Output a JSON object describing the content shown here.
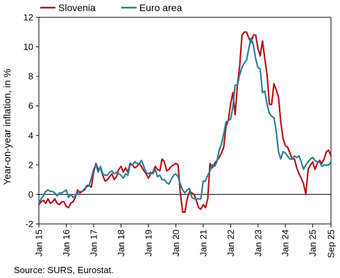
{
  "chart_data": {
    "type": "line",
    "title": "",
    "ylabel": "Year-on-year inflation, in %",
    "xlabel": "",
    "ylim": [
      -2,
      12
    ],
    "y_ticks": [
      -2,
      0,
      2,
      4,
      6,
      8,
      10,
      12
    ],
    "x_tick_labels": [
      "Jan 15",
      "Jan 16",
      "Jan 17",
      "Jan 18",
      "Jan 19",
      "Jan 20",
      "Jan 21",
      "Jan 22",
      "Jan 23",
      "Jan 24",
      "Jan 25",
      "Sep 25"
    ],
    "x_range": [
      "2015-01",
      "2025-09"
    ],
    "grid": false,
    "zero_line": true,
    "legend_position": "top-left",
    "source_note": "Source: SURS, Eurostat.",
    "series": [
      {
        "name": "Slovenia",
        "color": "#b5121b",
        "points": [
          [
            "2015-01",
            -0.7
          ],
          [
            "2015-02",
            -0.5
          ],
          [
            "2015-03",
            -0.4
          ],
          [
            "2015-04",
            -0.6
          ],
          [
            "2015-05",
            -0.3
          ],
          [
            "2015-06",
            -0.6
          ],
          [
            "2015-07",
            -0.5
          ],
          [
            "2015-08",
            -0.3
          ],
          [
            "2015-09",
            -0.6
          ],
          [
            "2015-10",
            -0.7
          ],
          [
            "2015-11",
            -0.5
          ],
          [
            "2015-12",
            -0.5
          ],
          [
            "2016-01",
            -0.8
          ],
          [
            "2016-02",
            -0.9
          ],
          [
            "2016-03",
            -0.6
          ],
          [
            "2016-04",
            -0.5
          ],
          [
            "2016-05",
            -0.2
          ],
          [
            "2016-06",
            0.3
          ],
          [
            "2016-07",
            0.1
          ],
          [
            "2016-08",
            0.2
          ],
          [
            "2016-09",
            0.3
          ],
          [
            "2016-10",
            0.6
          ],
          [
            "2016-11",
            0.6
          ],
          [
            "2016-12",
            0.5
          ],
          [
            "2017-01",
            1.5
          ],
          [
            "2017-02",
            2.1
          ],
          [
            "2017-03",
            1.7
          ],
          [
            "2017-04",
            1.8
          ],
          [
            "2017-05",
            1.3
          ],
          [
            "2017-06",
            0.9
          ],
          [
            "2017-07",
            1.0
          ],
          [
            "2017-08",
            1.2
          ],
          [
            "2017-09",
            1.4
          ],
          [
            "2017-10",
            1.0
          ],
          [
            "2017-11",
            1.2
          ],
          [
            "2017-12",
            1.7
          ],
          [
            "2018-01",
            1.9
          ],
          [
            "2018-02",
            1.5
          ],
          [
            "2018-03",
            1.8
          ],
          [
            "2018-04",
            1.5
          ],
          [
            "2018-05",
            2.1
          ],
          [
            "2018-06",
            2.0
          ],
          [
            "2018-07",
            1.8
          ],
          [
            "2018-08",
            1.9
          ],
          [
            "2018-09",
            2.1
          ],
          [
            "2018-10",
            1.9
          ],
          [
            "2018-11",
            1.6
          ],
          [
            "2018-12",
            1.4
          ],
          [
            "2019-01",
            1.1
          ],
          [
            "2019-02",
            1.4
          ],
          [
            "2019-03",
            1.5
          ],
          [
            "2019-04",
            1.9
          ],
          [
            "2019-05",
            1.7
          ],
          [
            "2019-06",
            1.6
          ],
          [
            "2019-07",
            2.4
          ],
          [
            "2019-08",
            2.2
          ],
          [
            "2019-09",
            1.6
          ],
          [
            "2019-10",
            1.7
          ],
          [
            "2019-11",
            1.9
          ],
          [
            "2019-12",
            2.0
          ],
          [
            "2020-01",
            2.1
          ],
          [
            "2020-02",
            2.0
          ],
          [
            "2020-03",
            0.1
          ],
          [
            "2020-04",
            -1.2
          ],
          [
            "2020-05",
            -1.2
          ],
          [
            "2020-06",
            -0.3
          ],
          [
            "2020-07",
            0.2
          ],
          [
            "2020-08",
            0.1
          ],
          [
            "2020-09",
            0.0
          ],
          [
            "2020-10",
            -0.4
          ],
          [
            "2020-11",
            -0.9
          ],
          [
            "2020-12",
            -1.0
          ],
          [
            "2021-01",
            -0.7
          ],
          [
            "2021-02",
            -0.9
          ],
          [
            "2021-03",
            -0.3
          ],
          [
            "2021-04",
            2.1
          ],
          [
            "2021-05",
            1.8
          ],
          [
            "2021-06",
            2.1
          ],
          [
            "2021-07",
            2.3
          ],
          [
            "2021-08",
            2.5
          ],
          [
            "2021-09",
            2.8
          ],
          [
            "2021-10",
            3.2
          ],
          [
            "2021-11",
            4.6
          ],
          [
            "2021-12",
            5.0
          ],
          [
            "2022-01",
            6.1
          ],
          [
            "2022-02",
            6.9
          ],
          [
            "2022-03",
            5.4
          ],
          [
            "2022-04",
            7.4
          ],
          [
            "2022-05",
            8.7
          ],
          [
            "2022-06",
            10.8
          ],
          [
            "2022-07",
            11.0
          ],
          [
            "2022-08",
            11.0
          ],
          [
            "2022-09",
            10.6
          ],
          [
            "2022-10",
            10.3
          ],
          [
            "2022-11",
            10.8
          ],
          [
            "2022-12",
            10.8
          ],
          [
            "2023-01",
            9.9
          ],
          [
            "2023-02",
            9.4
          ],
          [
            "2023-03",
            10.4
          ],
          [
            "2023-04",
            9.2
          ],
          [
            "2023-05",
            8.1
          ],
          [
            "2023-06",
            6.1
          ],
          [
            "2023-07",
            6.1
          ],
          [
            "2023-08",
            7.5
          ],
          [
            "2023-09",
            7.1
          ],
          [
            "2023-10",
            6.6
          ],
          [
            "2023-11",
            4.9
          ],
          [
            "2023-12",
            3.8
          ],
          [
            "2024-01",
            3.3
          ],
          [
            "2024-02",
            3.2
          ],
          [
            "2024-03",
            2.8
          ],
          [
            "2024-04",
            2.4
          ],
          [
            "2024-05",
            2.4
          ],
          [
            "2024-06",
            1.8
          ],
          [
            "2024-07",
            1.4
          ],
          [
            "2024-08",
            1.1
          ],
          [
            "2024-09",
            0.7
          ],
          [
            "2024-10",
            0.0
          ],
          [
            "2024-11",
            1.7
          ],
          [
            "2024-12",
            2.0
          ],
          [
            "2025-01",
            2.2
          ],
          [
            "2025-02",
            1.7
          ],
          [
            "2025-03",
            2.1
          ],
          [
            "2025-04",
            2.3
          ],
          [
            "2025-05",
            2.1
          ],
          [
            "2025-06",
            2.4
          ],
          [
            "2025-07",
            2.9
          ],
          [
            "2025-08",
            3.0
          ],
          [
            "2025-09",
            2.6
          ]
        ]
      },
      {
        "name": "Euro area",
        "color": "#2b7f96",
        "points": [
          [
            "2015-01",
            -0.6
          ],
          [
            "2015-02",
            -0.3
          ],
          [
            "2015-03",
            -0.1
          ],
          [
            "2015-04",
            0.2
          ],
          [
            "2015-05",
            0.3
          ],
          [
            "2015-06",
            0.2
          ],
          [
            "2015-07",
            0.2
          ],
          [
            "2015-08",
            0.1
          ],
          [
            "2015-09",
            -0.1
          ],
          [
            "2015-10",
            0.1
          ],
          [
            "2015-11",
            0.1
          ],
          [
            "2015-12",
            0.2
          ],
          [
            "2016-01",
            0.3
          ],
          [
            "2016-02",
            -0.2
          ],
          [
            "2016-03",
            0.0
          ],
          [
            "2016-04",
            -0.2
          ],
          [
            "2016-05",
            -0.1
          ],
          [
            "2016-06",
            0.1
          ],
          [
            "2016-07",
            0.2
          ],
          [
            "2016-08",
            0.2
          ],
          [
            "2016-09",
            0.4
          ],
          [
            "2016-10",
            0.5
          ],
          [
            "2016-11",
            0.6
          ],
          [
            "2016-12",
            1.1
          ],
          [
            "2017-01",
            1.7
          ],
          [
            "2017-02",
            2.0
          ],
          [
            "2017-03",
            1.5
          ],
          [
            "2017-04",
            1.9
          ],
          [
            "2017-05",
            1.4
          ],
          [
            "2017-06",
            1.3
          ],
          [
            "2017-07",
            1.3
          ],
          [
            "2017-08",
            1.5
          ],
          [
            "2017-09",
            1.6
          ],
          [
            "2017-10",
            1.4
          ],
          [
            "2017-11",
            1.5
          ],
          [
            "2017-12",
            1.4
          ],
          [
            "2018-01",
            1.3
          ],
          [
            "2018-02",
            1.1
          ],
          [
            "2018-03",
            1.4
          ],
          [
            "2018-04",
            1.3
          ],
          [
            "2018-05",
            2.0
          ],
          [
            "2018-06",
            2.0
          ],
          [
            "2018-07",
            2.2
          ],
          [
            "2018-08",
            2.1
          ],
          [
            "2018-09",
            2.1
          ],
          [
            "2018-10",
            2.3
          ],
          [
            "2018-11",
            1.9
          ],
          [
            "2018-12",
            1.5
          ],
          [
            "2019-01",
            1.4
          ],
          [
            "2019-02",
            1.5
          ],
          [
            "2019-03",
            1.4
          ],
          [
            "2019-04",
            1.7
          ],
          [
            "2019-05",
            1.2
          ],
          [
            "2019-06",
            1.3
          ],
          [
            "2019-07",
            1.0
          ],
          [
            "2019-08",
            1.0
          ],
          [
            "2019-09",
            0.8
          ],
          [
            "2019-10",
            0.7
          ],
          [
            "2019-11",
            1.0
          ],
          [
            "2019-12",
            1.3
          ],
          [
            "2020-01",
            1.4
          ],
          [
            "2020-02",
            1.2
          ],
          [
            "2020-03",
            0.7
          ],
          [
            "2020-04",
            0.3
          ],
          [
            "2020-05",
            0.1
          ],
          [
            "2020-06",
            0.3
          ],
          [
            "2020-07",
            0.4
          ],
          [
            "2020-08",
            -0.2
          ],
          [
            "2020-09",
            -0.3
          ],
          [
            "2020-10",
            -0.3
          ],
          [
            "2020-11",
            -0.3
          ],
          [
            "2020-12",
            -0.3
          ],
          [
            "2021-01",
            0.9
          ],
          [
            "2021-02",
            0.9
          ],
          [
            "2021-03",
            1.3
          ],
          [
            "2021-04",
            1.6
          ],
          [
            "2021-05",
            2.0
          ],
          [
            "2021-06",
            1.9
          ],
          [
            "2021-07",
            2.2
          ],
          [
            "2021-08",
            3.0
          ],
          [
            "2021-09",
            3.4
          ],
          [
            "2021-10",
            4.1
          ],
          [
            "2021-11",
            4.9
          ],
          [
            "2021-12",
            5.0
          ],
          [
            "2022-01",
            5.1
          ],
          [
            "2022-02",
            5.9
          ],
          [
            "2022-03",
            7.4
          ],
          [
            "2022-04",
            7.4
          ],
          [
            "2022-05",
            8.1
          ],
          [
            "2022-06",
            8.6
          ],
          [
            "2022-07",
            8.9
          ],
          [
            "2022-08",
            9.1
          ],
          [
            "2022-09",
            9.9
          ],
          [
            "2022-10",
            10.6
          ],
          [
            "2022-11",
            10.1
          ],
          [
            "2022-12",
            9.2
          ],
          [
            "2023-01",
            8.6
          ],
          [
            "2023-02",
            8.5
          ],
          [
            "2023-03",
            6.9
          ],
          [
            "2023-04",
            7.0
          ],
          [
            "2023-05",
            6.1
          ],
          [
            "2023-06",
            5.5
          ],
          [
            "2023-07",
            5.3
          ],
          [
            "2023-08",
            5.2
          ],
          [
            "2023-09",
            4.3
          ],
          [
            "2023-10",
            2.9
          ],
          [
            "2023-11",
            2.4
          ],
          [
            "2023-12",
            2.9
          ],
          [
            "2024-01",
            2.8
          ],
          [
            "2024-02",
            2.6
          ],
          [
            "2024-03",
            2.4
          ],
          [
            "2024-04",
            2.4
          ],
          [
            "2024-05",
            2.6
          ],
          [
            "2024-06",
            2.5
          ],
          [
            "2024-07",
            2.6
          ],
          [
            "2024-08",
            2.2
          ],
          [
            "2024-09",
            1.7
          ],
          [
            "2024-10",
            2.0
          ],
          [
            "2024-11",
            2.2
          ],
          [
            "2024-12",
            2.4
          ],
          [
            "2025-01",
            2.5
          ],
          [
            "2025-02",
            2.3
          ],
          [
            "2025-03",
            2.2
          ],
          [
            "2025-04",
            2.2
          ],
          [
            "2025-05",
            1.9
          ],
          [
            "2025-06",
            2.0
          ],
          [
            "2025-07",
            2.0
          ],
          [
            "2025-08",
            2.0
          ],
          [
            "2025-09",
            2.2
          ]
        ]
      }
    ]
  }
}
